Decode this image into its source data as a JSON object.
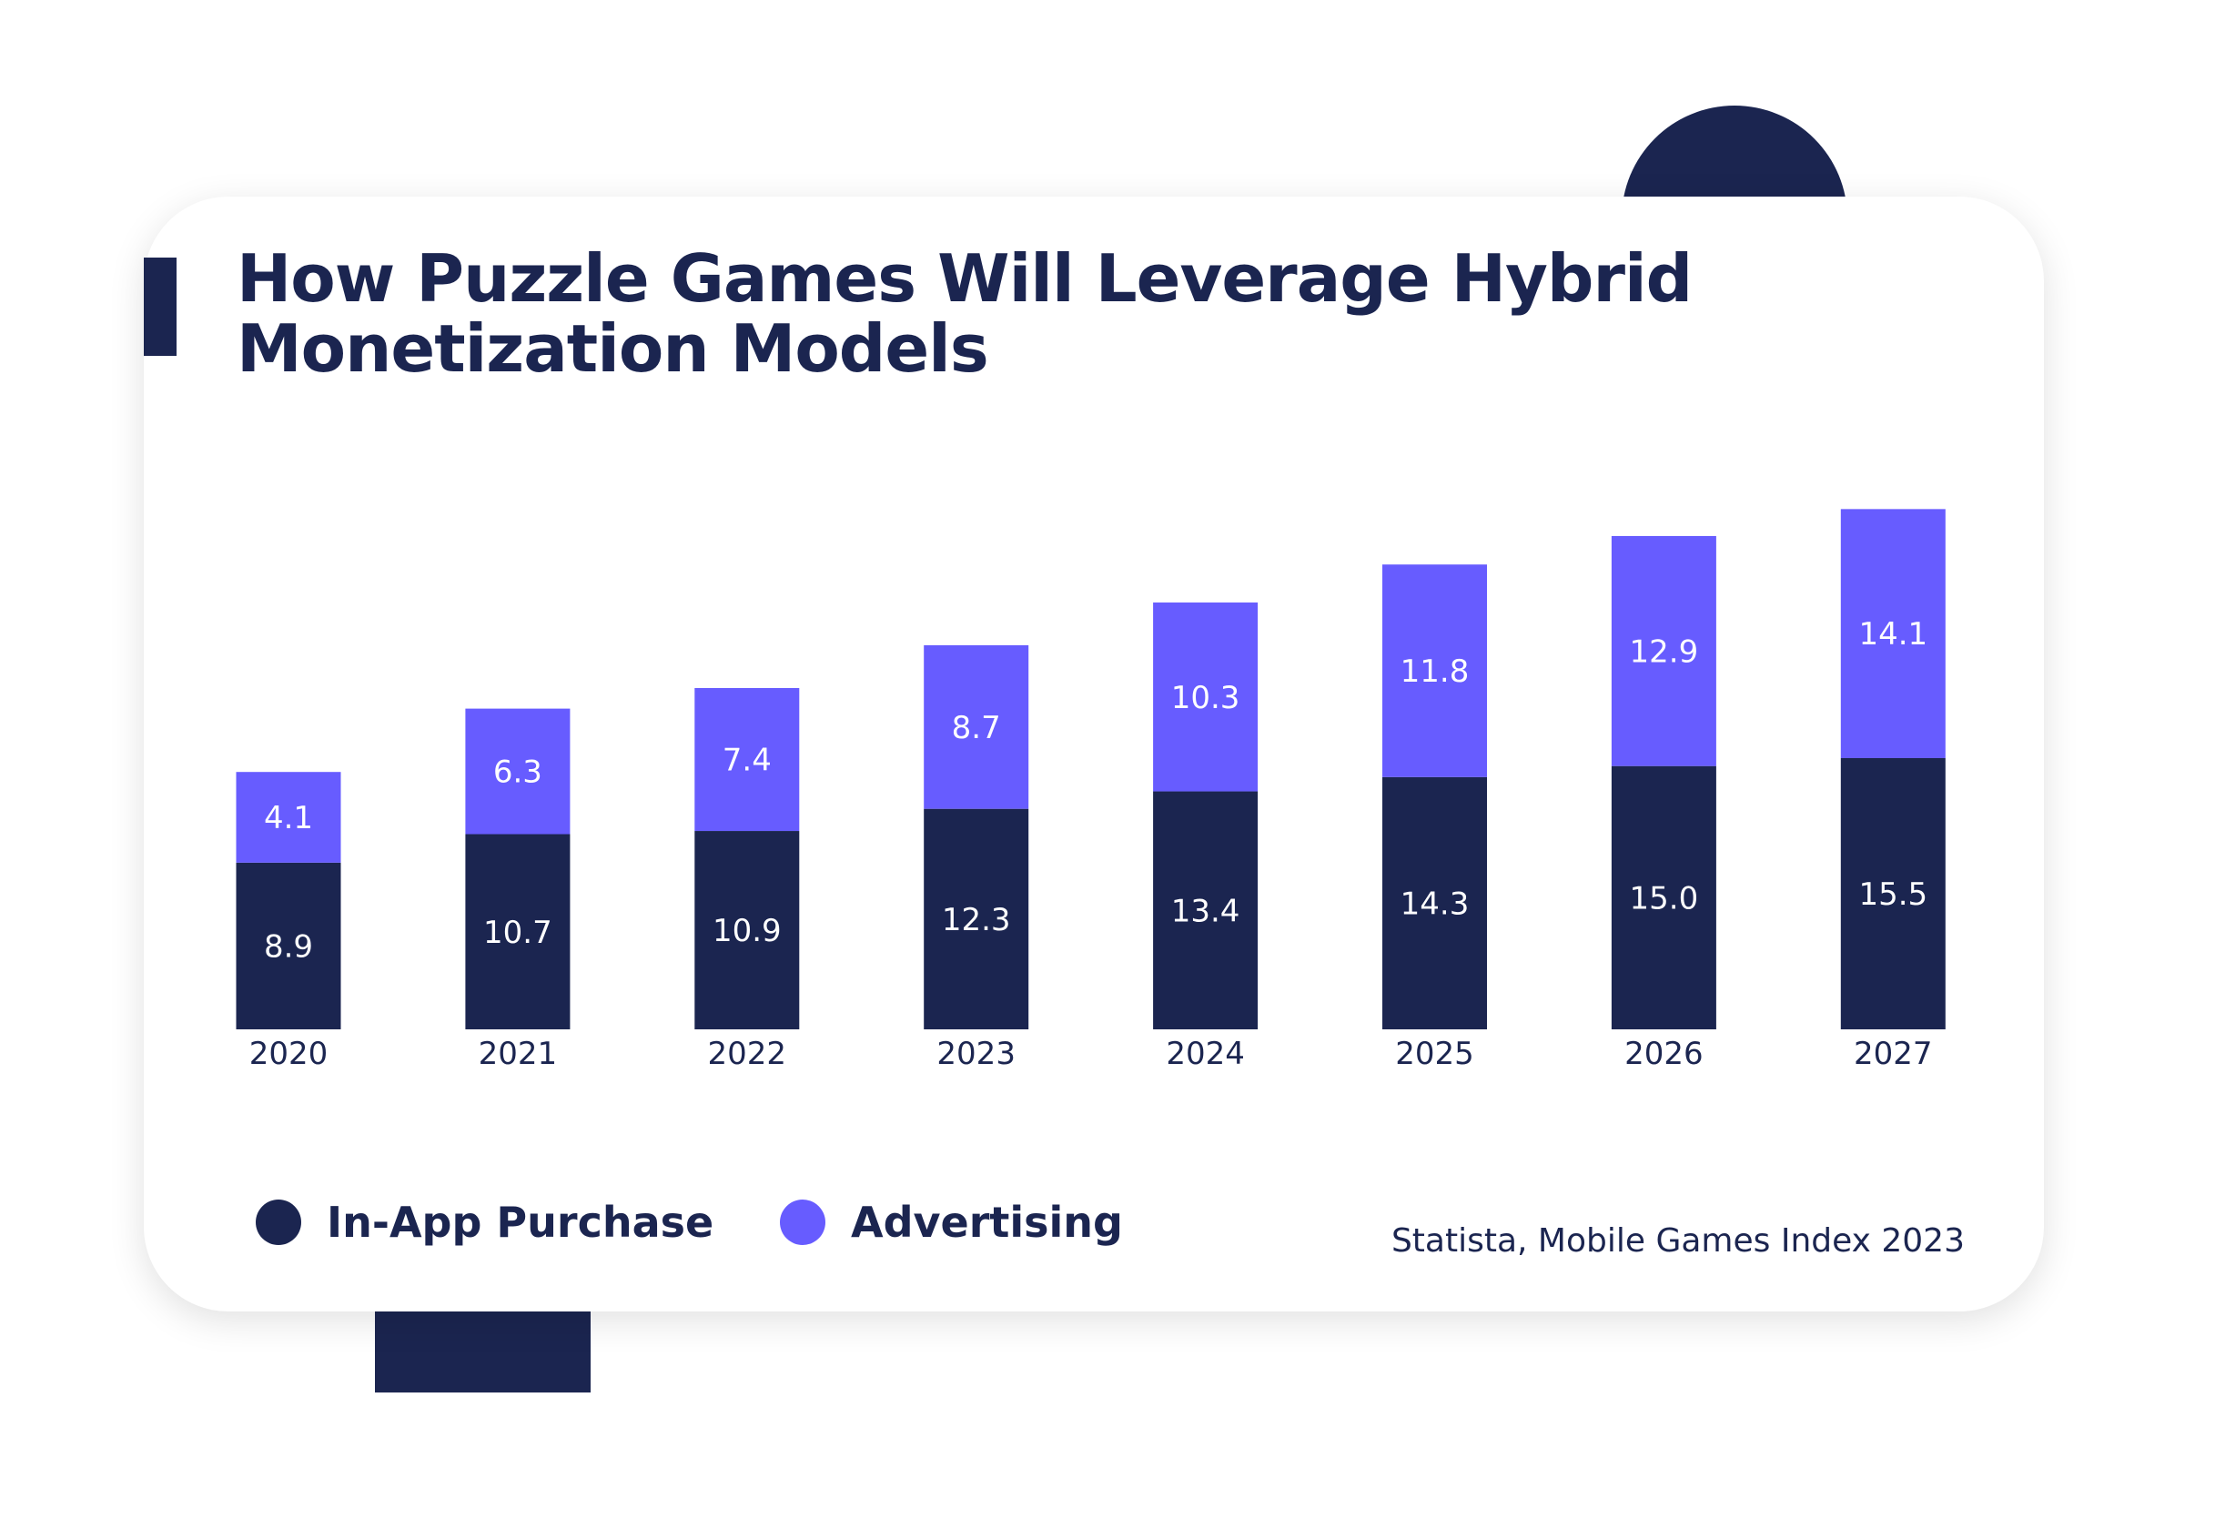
{
  "chart_data": {
    "type": "bar",
    "stacked": true,
    "title": "How Puzzle Games Will Leverage Hybrid Monetization Models",
    "title_lines": [
      "How Puzzle Games Will Leverage Hybrid",
      "Monetization Models"
    ],
    "categories": [
      "2020",
      "2021",
      "2022",
      "2023",
      "2024",
      "2025",
      "2026",
      "2027"
    ],
    "series": [
      {
        "name": "In-App Purchase",
        "color": "#1b2550",
        "values": [
          8.9,
          10.7,
          10.9,
          12.3,
          13.4,
          14.3,
          15.0,
          15.5
        ],
        "labels": [
          "8.9",
          "10.7",
          "10.9",
          "12.3",
          "13.4",
          "14.3",
          "15.0",
          "15.5"
        ]
      },
      {
        "name": "Advertising",
        "color": "#675cff",
        "values": [
          4.1,
          6.3,
          7.4,
          8.7,
          10.3,
          11.8,
          12.9,
          14.1
        ],
        "labels": [
          "4.1",
          "6.3",
          "7.4",
          "8.7",
          "10.3",
          "11.8",
          "12.9",
          "14.1"
        ]
      }
    ],
    "xlabel": "",
    "ylabel": "",
    "grid": false,
    "legend_position": "bottom-left",
    "source": "Statista, Mobile Games Index 2023"
  }
}
